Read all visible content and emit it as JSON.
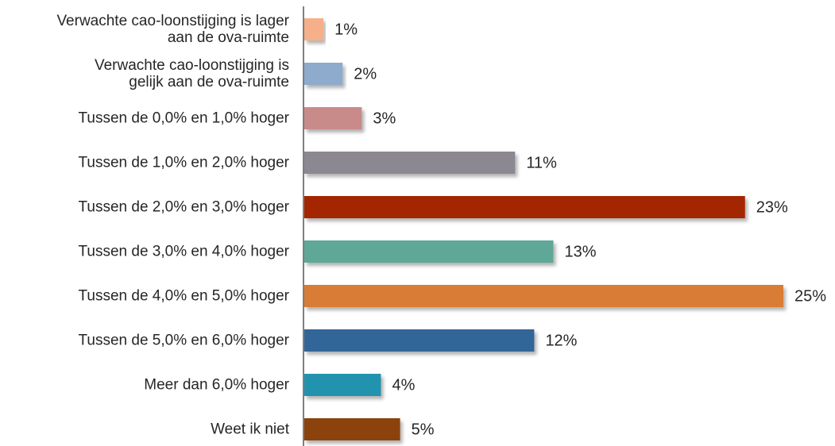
{
  "chart_data": {
    "type": "bar",
    "orientation": "horizontal",
    "categories": [
      "Verwachte cao-loonstijging is lager\naan de ova-ruimte",
      "Verwachte cao-loonstijging is\ngelijk aan de ova-ruimte",
      "Tussen de 0,0% en 1,0% hoger",
      "Tussen de 1,0% en 2,0% hoger",
      "Tussen de 2,0% en 3,0% hoger",
      "Tussen de 3,0% en 4,0% hoger",
      "Tussen de 4,0% en 5,0% hoger",
      "Tussen de 5,0% en 6,0% hoger",
      "Meer dan 6,0% hoger",
      "Weet ik niet"
    ],
    "values": [
      1,
      2,
      3,
      11,
      23,
      13,
      25,
      12,
      4,
      5
    ],
    "value_labels": [
      "1%",
      "2%",
      "3%",
      "11%",
      "23%",
      "13%",
      "25%",
      "12%",
      "4%",
      "5%"
    ],
    "colors": [
      "#f5b08a",
      "#8eaacd",
      "#c98a8a",
      "#8b8892",
      "#a32600",
      "#5fa898",
      "#d97b34",
      "#336699",
      "#2193ae",
      "#8b4210"
    ]
  }
}
